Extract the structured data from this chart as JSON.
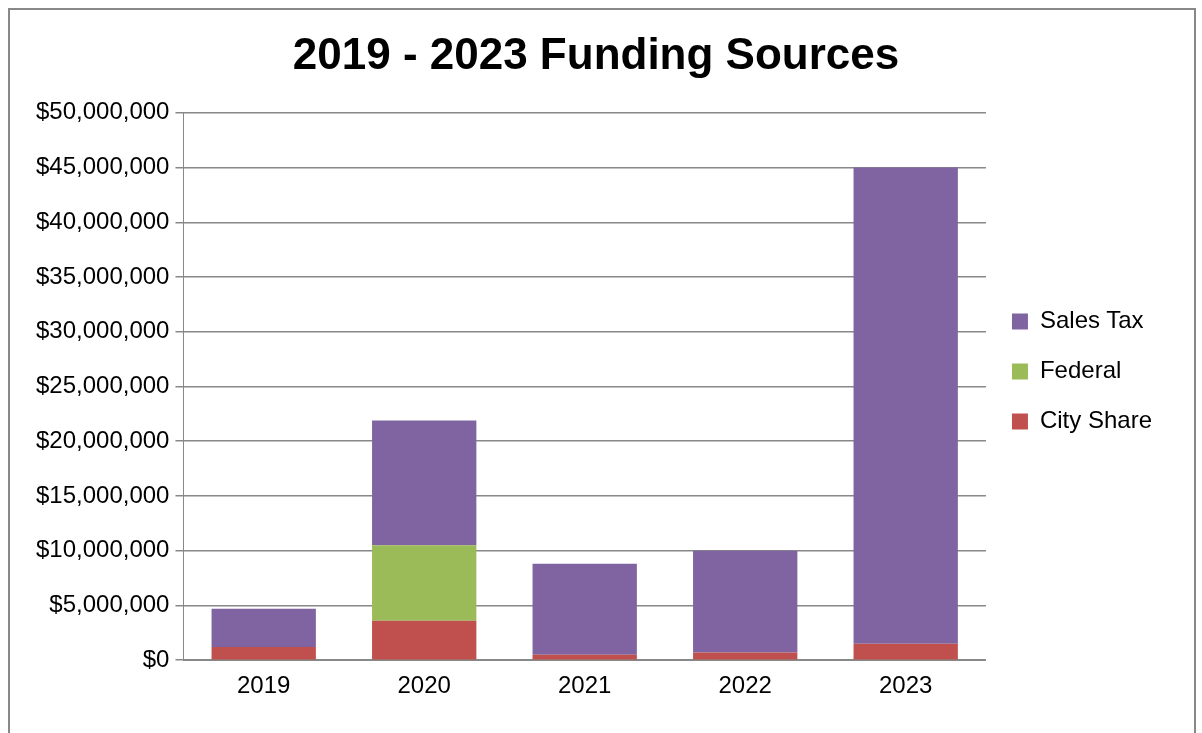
{
  "chart_data": {
    "type": "bar",
    "title": "2019 - 2023 Funding Sources",
    "categories": [
      "2019",
      "2020",
      "2021",
      "2022",
      "2023"
    ],
    "stacked": true,
    "series": [
      {
        "name": "City Share",
        "color": "#c0504d",
        "values": [
          1200000,
          3600000,
          500000,
          700000,
          1500000
        ]
      },
      {
        "name": "Federal",
        "color": "#9bbb59",
        "values": [
          null,
          6900000,
          null,
          null,
          null
        ]
      },
      {
        "name": "Sales Tax",
        "color": "#8064a2",
        "values": [
          3500000,
          11400000,
          8300000,
          9300000,
          43500000
        ]
      }
    ],
    "ylim": [
      0,
      50000000
    ],
    "yticks": [
      {
        "value": 0,
        "label": "$0"
      },
      {
        "value": 5000000,
        "label": "$5,000,000"
      },
      {
        "value": 10000000,
        "label": "$10,000,000"
      },
      {
        "value": 15000000,
        "label": "$15,000,000"
      },
      {
        "value": 20000000,
        "label": "$20,000,000"
      },
      {
        "value": 25000000,
        "label": "$25,000,000"
      },
      {
        "value": 30000000,
        "label": "$30,000,000"
      },
      {
        "value": 35000000,
        "label": "$35,000,000"
      },
      {
        "value": 40000000,
        "label": "$40,000,000"
      },
      {
        "value": 45000000,
        "label": "$45,000,000"
      },
      {
        "value": 50000000,
        "label": "$50,000,000"
      }
    ],
    "grid": "y",
    "legend": "right"
  }
}
